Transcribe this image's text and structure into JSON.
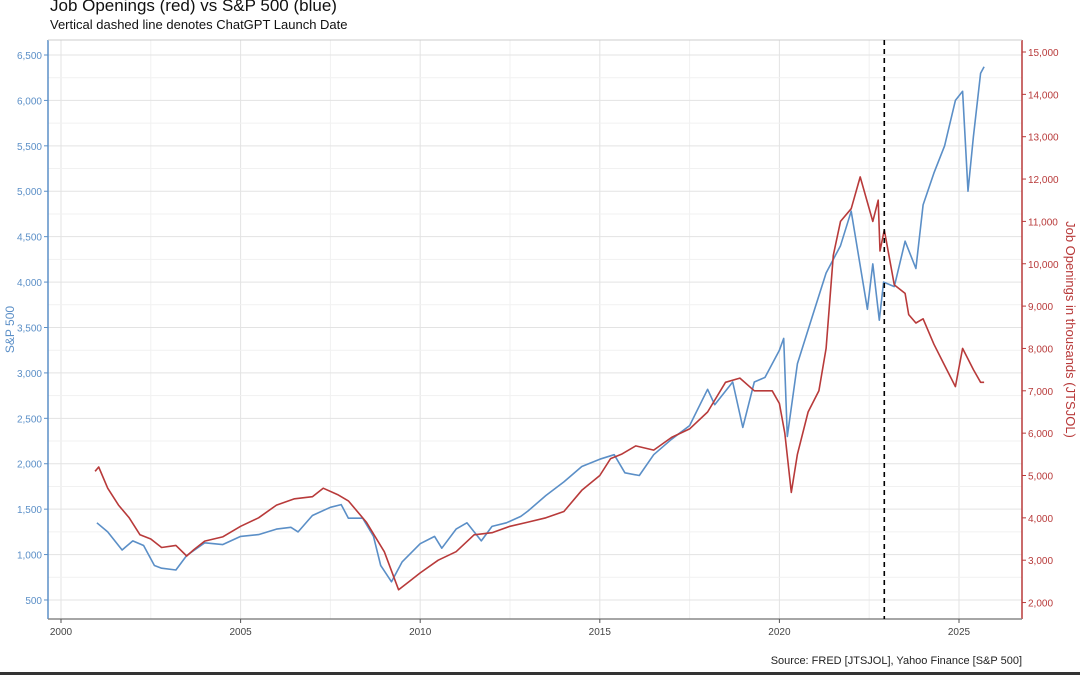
{
  "chart_data": {
    "type": "line",
    "title": "Job Openings (red) vs S&P 500 (blue)",
    "subtitle": "Vertical dashed line denotes ChatGPT Launch Date",
    "source": "Source:  FRED [JTSJOL], Yahoo Finance [S&P 500]",
    "xlim": [
      1999.6,
      2026.8
    ],
    "x_ticks": [
      "2000",
      "2005",
      "2010",
      "2015",
      "2020",
      "2025"
    ],
    "y_left": {
      "label": "S&P 500",
      "ylim": [
        350,
        6650
      ],
      "ticks": [
        "500",
        "1,000",
        "1,500",
        "2,000",
        "2,500",
        "3,000",
        "3,500",
        "4,000",
        "4,500",
        "5,000",
        "5,500",
        "6,000",
        "6,500"
      ],
      "color": "#5b8fc7"
    },
    "y_right": {
      "label": "Job Openings in thousands (JTSJOL)",
      "ylim": [
        1650,
        15250
      ],
      "ticks": [
        "2,000",
        "3,000",
        "4,000",
        "5,000",
        "6,000",
        "7,000",
        "8,000",
        "9,000",
        "10,000",
        "11,000",
        "12,000",
        "13,000",
        "14,000",
        "15,000"
      ],
      "color": "#b83a3a"
    },
    "vline": {
      "x": 2022.92,
      "style": "dashed",
      "color": "#000000"
    },
    "grid": true,
    "series": [
      {
        "axis": "left",
        "color": "#5b8fc7",
        "x": [
          2001.0,
          2001.3,
          2001.7,
          2002.0,
          2002.3,
          2002.6,
          2002.8,
          2003.2,
          2003.5,
          2004.0,
          2004.5,
          2005.0,
          2005.5,
          2006.0,
          2006.4,
          2006.6,
          2007.0,
          2007.5,
          2007.8,
          2008.0,
          2008.4,
          2008.7,
          2008.9,
          2009.2,
          2009.5,
          2010.0,
          2010.4,
          2010.6,
          2011.0,
          2011.3,
          2011.7,
          2012.0,
          2012.4,
          2012.8,
          2013.0,
          2013.5,
          2014.0,
          2014.5,
          2015.0,
          2015.4,
          2015.7,
          2016.1,
          2016.5,
          2017.0,
          2017.5,
          2018.0,
          2018.2,
          2018.7,
          2018.98,
          2019.3,
          2019.6,
          2020.0,
          2020.12,
          2020.22,
          2020.5,
          2020.9,
          2021.3,
          2021.7,
          2022.0,
          2022.45,
          2022.6,
          2022.78,
          2022.9,
          2023.2,
          2023.5,
          2023.8,
          2024.0,
          2024.3,
          2024.6,
          2024.9,
          2025.1,
          2025.25,
          2025.4,
          2025.6,
          2025.7
        ],
        "y": [
          1350,
          1250,
          1050,
          1150,
          1100,
          880,
          850,
          830,
          990,
          1130,
          1110,
          1200,
          1220,
          1280,
          1300,
          1250,
          1430,
          1520,
          1550,
          1400,
          1400,
          1200,
          880,
          700,
          920,
          1120,
          1200,
          1070,
          1280,
          1350,
          1150,
          1310,
          1350,
          1420,
          1480,
          1650,
          1800,
          1970,
          2050,
          2100,
          1900,
          1870,
          2100,
          2270,
          2420,
          2820,
          2650,
          2900,
          2400,
          2900,
          2950,
          3250,
          3380,
          2300,
          3100,
          3600,
          4100,
          4400,
          4780,
          3700,
          4200,
          3580,
          4000,
          3950,
          4450,
          4150,
          4850,
          5200,
          5500,
          6000,
          6100,
          5000,
          5600,
          6300,
          6370
        ]
      },
      {
        "axis": "right",
        "color": "#b83a3a",
        "x": [
          2000.95,
          2001.05,
          2001.3,
          2001.6,
          2001.9,
          2002.2,
          2002.5,
          2002.8,
          2003.2,
          2003.5,
          2003.7,
          2004.0,
          2004.5,
          2005.0,
          2005.5,
          2006.0,
          2006.5,
          2007.0,
          2007.3,
          2007.7,
          2008.0,
          2008.5,
          2009.0,
          2009.4,
          2009.7,
          2010.0,
          2010.5,
          2011.0,
          2011.5,
          2012.0,
          2012.5,
          2013.0,
          2013.5,
          2014.0,
          2014.5,
          2015.0,
          2015.3,
          2015.6,
          2016.0,
          2016.5,
          2017.0,
          2017.5,
          2018.0,
          2018.5,
          2018.9,
          2019.3,
          2019.8,
          2020.0,
          2020.15,
          2020.33,
          2020.5,
          2020.8,
          2021.1,
          2021.3,
          2021.5,
          2021.7,
          2022.0,
          2022.25,
          2022.6,
          2022.75,
          2022.8,
          2022.92,
          2023.2,
          2023.5,
          2023.6,
          2023.8,
          2024.0,
          2024.3,
          2024.6,
          2024.9,
          2025.1,
          2025.4,
          2025.6,
          2025.7
        ],
        "y": [
          5100,
          5200,
          4700,
          4300,
          4000,
          3600,
          3500,
          3300,
          3350,
          3100,
          3250,
          3450,
          3550,
          3800,
          4000,
          4300,
          4450,
          4500,
          4700,
          4550,
          4400,
          3900,
          3200,
          2300,
          2500,
          2700,
          3000,
          3200,
          3600,
          3650,
          3800,
          3900,
          4000,
          4150,
          4650,
          5000,
          5400,
          5500,
          5700,
          5600,
          5900,
          6100,
          6500,
          7200,
          7300,
          7000,
          7000,
          6700,
          6000,
          4600,
          5500,
          6500,
          7000,
          8000,
          10200,
          11000,
          11300,
          12050,
          11000,
          11500,
          10300,
          10800,
          9500,
          9300,
          8800,
          8600,
          8700,
          8100,
          7600,
          7100,
          8000,
          7500,
          7200,
          7200
        ]
      }
    ]
  }
}
